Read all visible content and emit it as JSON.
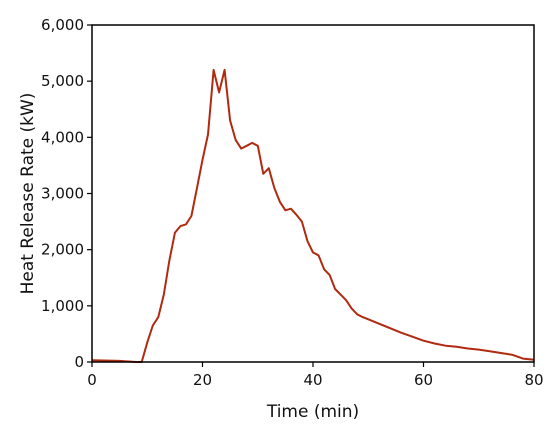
{
  "chart_data": {
    "type": "line",
    "xlabel": "Time (min)",
    "ylabel": "Heat Release Rate (kW)",
    "xlim": [
      0,
      80
    ],
    "ylim": [
      0,
      6000
    ],
    "x_ticks": [
      0,
      20,
      40,
      60,
      80
    ],
    "y_ticks": [
      0,
      1000,
      2000,
      3000,
      4000,
      5000,
      6000
    ],
    "x_tick_labels": [
      "0",
      "20",
      "40",
      "60",
      "80"
    ],
    "y_tick_labels": [
      "0",
      "1,000",
      "2,000",
      "3,000",
      "4,000",
      "5,000",
      "6,000"
    ],
    "grid": false,
    "colors": {
      "line": "#b02a10",
      "axis": "#000000"
    },
    "series": [
      {
        "x": [
          0,
          5,
          8,
          9,
          10,
          11,
          12,
          13,
          14,
          15,
          16,
          17,
          18,
          19,
          20,
          21,
          22,
          23,
          24,
          25,
          26,
          27,
          28,
          29,
          30,
          31,
          32,
          33,
          34,
          35,
          36,
          37,
          38,
          39,
          40,
          41,
          42,
          43,
          44,
          45,
          46,
          47,
          48,
          49,
          50,
          52,
          54,
          56,
          58,
          60,
          62,
          64,
          66,
          68,
          70,
          72,
          74,
          76,
          78,
          80
        ],
        "y": [
          30,
          20,
          0,
          0,
          350,
          650,
          800,
          1200,
          1800,
          2300,
          2420,
          2450,
          2600,
          3100,
          3600,
          4050,
          5200,
          4800,
          5200,
          4300,
          3950,
          3800,
          3850,
          3900,
          3850,
          3350,
          3450,
          3100,
          2850,
          2700,
          2730,
          2620,
          2500,
          2150,
          1950,
          1900,
          1650,
          1550,
          1300,
          1200,
          1100,
          950,
          850,
          800,
          760,
          680,
          600,
          520,
          450,
          380,
          330,
          290,
          270,
          240,
          220,
          190,
          160,
          130,
          60,
          40
        ]
      }
    ]
  }
}
